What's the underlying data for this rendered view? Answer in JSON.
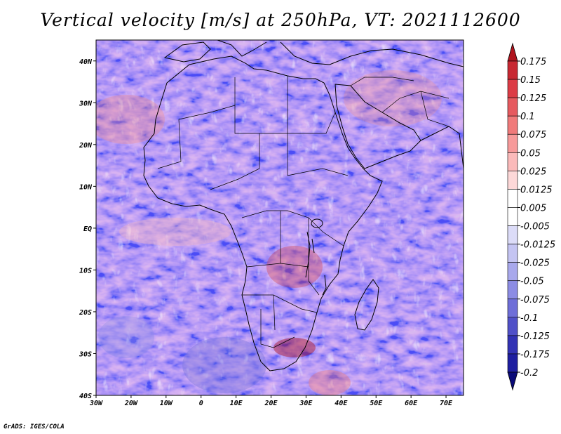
{
  "title": "Vertical velocity [m/s] at 250hPa, VT: 2021112600",
  "credit": "GrADS: IGES/COLA",
  "chart_data": {
    "type": "heatmap",
    "title": "Vertical velocity [m/s] at 250hPa, VT: 2021112600",
    "variable": "Vertical velocity",
    "units": "m/s",
    "level": "250hPa",
    "valid_time": "2021112600",
    "x_range": [
      -30,
      75
    ],
    "y_range": [
      -40,
      45
    ],
    "lat_ticks": [
      {
        "value": 40,
        "label": "40N"
      },
      {
        "value": 30,
        "label": "30N"
      },
      {
        "value": 20,
        "label": "20N"
      },
      {
        "value": 10,
        "label": "10N"
      },
      {
        "value": 0,
        "label": "EQ"
      },
      {
        "value": -10,
        "label": "10S"
      },
      {
        "value": -20,
        "label": "20S"
      },
      {
        "value": -30,
        "label": "30S"
      },
      {
        "value": -40,
        "label": "40S"
      }
    ],
    "lon_ticks": [
      {
        "value": -30,
        "label": "30W"
      },
      {
        "value": -20,
        "label": "20W"
      },
      {
        "value": -10,
        "label": "10W"
      },
      {
        "value": 0,
        "label": "0"
      },
      {
        "value": 10,
        "label": "10E"
      },
      {
        "value": 20,
        "label": "20E"
      },
      {
        "value": 30,
        "label": "30E"
      },
      {
        "value": 40,
        "label": "40E"
      },
      {
        "value": 50,
        "label": "50E"
      },
      {
        "value": 60,
        "label": "60E"
      },
      {
        "value": 70,
        "label": "70E"
      }
    ],
    "colorbar": {
      "labels": [
        "0.175",
        "0.15",
        "0.125",
        "0.1",
        "0.075",
        "0.05",
        "0.025",
        "0.0125",
        "0.005",
        "-0.005",
        "-0.0125",
        "-0.025",
        "-0.05",
        "-0.075",
        "-0.1",
        "-0.125",
        "-0.175",
        "-0.2"
      ],
      "colors": [
        "#b0141e",
        "#c82832",
        "#dc3c46",
        "#e65a5f",
        "#f07a7a",
        "#f79a9a",
        "#fbbaba",
        "#fdd8d8",
        "#ffffff",
        "#ffffff",
        "#dcdcf8",
        "#c4c4f2",
        "#a8a8ec",
        "#8c8ce4",
        "#6e6ed8",
        "#5050c8",
        "#3232b4",
        "#1e1ea0",
        "#0a0a78"
      ]
    }
  }
}
